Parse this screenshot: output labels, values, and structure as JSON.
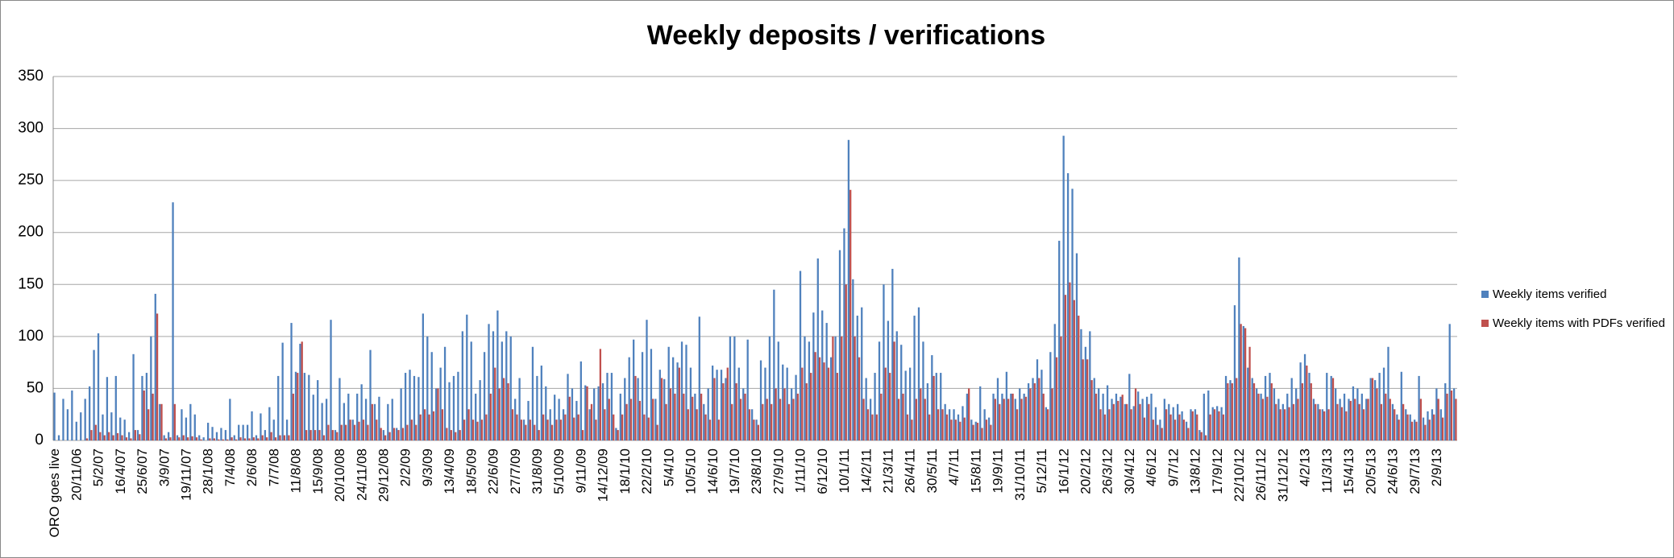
{
  "chart_data": {
    "type": "bar",
    "title": "Weekly deposits / verifications",
    "categories": [
      "ORO goes live",
      null,
      null,
      null,
      null,
      "20/11/06",
      null,
      null,
      null,
      null,
      "5/2/07",
      null,
      null,
      null,
      null,
      "16/4/07",
      null,
      null,
      null,
      null,
      "25/6/07",
      null,
      null,
      null,
      null,
      "3/9/07",
      null,
      null,
      null,
      null,
      "19/11/07",
      null,
      null,
      null,
      null,
      "28/1/08",
      null,
      null,
      null,
      null,
      "7/4/08",
      null,
      null,
      null,
      null,
      "2/6/08",
      null,
      null,
      null,
      null,
      "7/7/08",
      null,
      null,
      null,
      null,
      "11/8/08",
      null,
      null,
      null,
      null,
      "15/9/08",
      null,
      null,
      null,
      null,
      "20/10/08",
      null,
      null,
      null,
      null,
      "24/11/08",
      null,
      null,
      null,
      null,
      "29/12/08",
      null,
      null,
      null,
      null,
      "2/2/09",
      null,
      null,
      null,
      null,
      "9/3/09",
      null,
      null,
      null,
      null,
      "13/4/09",
      null,
      null,
      null,
      null,
      "18/5/09",
      null,
      null,
      null,
      null,
      "22/6/09",
      null,
      null,
      null,
      null,
      "27/7/09",
      null,
      null,
      null,
      null,
      "31/8/09",
      null,
      null,
      null,
      null,
      "5/10/09",
      null,
      null,
      null,
      null,
      "9/11/09",
      null,
      null,
      null,
      null,
      "14/12/09",
      null,
      null,
      null,
      null,
      "18/1/10",
      null,
      null,
      null,
      null,
      "22/2/10",
      null,
      null,
      null,
      null,
      "5/4/10",
      null,
      null,
      null,
      null,
      "10/5/10",
      null,
      null,
      null,
      null,
      "14/6/10",
      null,
      null,
      null,
      null,
      "19/7/10",
      null,
      null,
      null,
      null,
      "23/8/10",
      null,
      null,
      null,
      null,
      "27/9/10",
      null,
      null,
      null,
      null,
      "1/11/10",
      null,
      null,
      null,
      null,
      "6/12/10",
      null,
      null,
      null,
      null,
      "10/1/11",
      null,
      null,
      null,
      null,
      "14/2/11",
      null,
      null,
      null,
      null,
      "21/3/11",
      null,
      null,
      null,
      null,
      "26/4/11",
      null,
      null,
      null,
      null,
      "30/5/11",
      null,
      null,
      null,
      null,
      "4/7/11",
      null,
      null,
      null,
      null,
      "15/8/11",
      null,
      null,
      null,
      null,
      "19/9/11",
      null,
      null,
      null,
      null,
      "31/10/11",
      null,
      null,
      null,
      null,
      "5/12/11",
      null,
      null,
      null,
      null,
      "16/1/12",
      null,
      null,
      null,
      null,
      "20/2/12",
      null,
      null,
      null,
      null,
      "26/3/12",
      null,
      null,
      null,
      null,
      "30/4/12",
      null,
      null,
      null,
      null,
      "4/6/12",
      null,
      null,
      null,
      null,
      "9/7/12",
      null,
      null,
      null,
      null,
      "13/8/12",
      null,
      null,
      null,
      null,
      "17/9/12",
      null,
      null,
      null,
      null,
      "22/10/12",
      null,
      null,
      null,
      null,
      "26/11/12",
      null,
      null,
      null,
      null,
      "31/12/12",
      null,
      null,
      null,
      null,
      "4/2/13",
      null,
      null,
      null,
      null,
      "11/3/13",
      null,
      null,
      null,
      null,
      "15/4/13",
      null,
      null,
      null,
      null,
      "20/5/13",
      null,
      null,
      null,
      null,
      "24/6/13",
      null,
      null,
      null,
      null,
      "29/7/13",
      null,
      null,
      null,
      null,
      "2/9/13",
      null,
      null,
      null,
      null
    ],
    "series": [
      {
        "name": "Weekly items verified",
        "color": "#4f81bd",
        "values": [
          46,
          5,
          40,
          30,
          48,
          18,
          27,
          40,
          52,
          87,
          103,
          25,
          61,
          27,
          62,
          22,
          20,
          8,
          83,
          10,
          62,
          65,
          100,
          141,
          35,
          5,
          8,
          229,
          5,
          30,
          22,
          35,
          25,
          5,
          3,
          17,
          13,
          8,
          12,
          10,
          40,
          5,
          15,
          15,
          15,
          28,
          5,
          26,
          10,
          32,
          20,
          62,
          94,
          20,
          113,
          66,
          93,
          65,
          63,
          44,
          58,
          36,
          40,
          116,
          10,
          60,
          36,
          45,
          20,
          45,
          54,
          40,
          87,
          35,
          42,
          10,
          35,
          40,
          12,
          50,
          65,
          68,
          62,
          61,
          122,
          100,
          85,
          50,
          70,
          90,
          56,
          62,
          66,
          105,
          121,
          95,
          45,
          58,
          85,
          112,
          105,
          125,
          95,
          105,
          100,
          40,
          60,
          20,
          38,
          90,
          62,
          72,
          52,
          30,
          44,
          40,
          30,
          64,
          50,
          38,
          76,
          53,
          30,
          50,
          52,
          55,
          65,
          65,
          12,
          45,
          60,
          80,
          97,
          60,
          85,
          116,
          88,
          40,
          68,
          59,
          90,
          80,
          75,
          95,
          92,
          70,
          45,
          119,
          35,
          50,
          72,
          68,
          68,
          60,
          100,
          100,
          70,
          50,
          97,
          30,
          20,
          77,
          70,
          100,
          145,
          95,
          73,
          70,
          50,
          63,
          163,
          100,
          95,
          123,
          175,
          125,
          113,
          80,
          100,
          183,
          204,
          289,
          155,
          120,
          128,
          60,
          40,
          65,
          95,
          150,
          115,
          165,
          105,
          92,
          67,
          70,
          120,
          128,
          95,
          55,
          82,
          65,
          65,
          35,
          30,
          30,
          25,
          33,
          45,
          20,
          18,
          52,
          30,
          22,
          45,
          60,
          45,
          66,
          45,
          40,
          50,
          45,
          55,
          60,
          78,
          68,
          32,
          85,
          112,
          192,
          293,
          257,
          242,
          180,
          107,
          90,
          105,
          60,
          50,
          45,
          53,
          40,
          45,
          42,
          35,
          64,
          33,
          47,
          40,
          42,
          45,
          32,
          20,
          40,
          35,
          32,
          35,
          28,
          18,
          30,
          30,
          10,
          45,
          48,
          32,
          33,
          32,
          62,
          58,
          130,
          176,
          110,
          70,
          60,
          50,
          45,
          62,
          65,
          50,
          40,
          35,
          45,
          60,
          50,
          75,
          83,
          65,
          40,
          35,
          30,
          65,
          62,
          50,
          40,
          45,
          40,
          52,
          50,
          45,
          40,
          60,
          58,
          65,
          70,
          90,
          35,
          25,
          66,
          30,
          25,
          20,
          62,
          22,
          28,
          30,
          50,
          30,
          55,
          112,
          50
        ]
      },
      {
        "name": "Weekly items with PDFs verified",
        "color": "#c0504d",
        "values": [
          0,
          0,
          0,
          0,
          0,
          0,
          0,
          2,
          10,
          15,
          8,
          5,
          8,
          5,
          7,
          5,
          3,
          2,
          10,
          6,
          48,
          30,
          45,
          122,
          35,
          2,
          3,
          35,
          3,
          5,
          3,
          4,
          3,
          1,
          0,
          2,
          2,
          1,
          1,
          1,
          3,
          1,
          3,
          2,
          2,
          3,
          2,
          5,
          3,
          8,
          3,
          5,
          5,
          5,
          45,
          65,
          95,
          10,
          10,
          10,
          10,
          5,
          15,
          10,
          8,
          15,
          15,
          20,
          15,
          18,
          20,
          15,
          35,
          20,
          12,
          5,
          8,
          12,
          10,
          12,
          15,
          20,
          15,
          25,
          30,
          25,
          28,
          50,
          30,
          12,
          10,
          8,
          10,
          20,
          30,
          20,
          18,
          20,
          25,
          45,
          70,
          50,
          60,
          55,
          30,
          25,
          20,
          15,
          20,
          15,
          10,
          25,
          20,
          15,
          20,
          20,
          25,
          42,
          22,
          25,
          10,
          52,
          35,
          20,
          88,
          30,
          40,
          25,
          10,
          25,
          35,
          40,
          62,
          38,
          25,
          22,
          40,
          15,
          60,
          35,
          50,
          45,
          70,
          45,
          30,
          42,
          30,
          45,
          25,
          20,
          60,
          20,
          55,
          70,
          35,
          55,
          40,
          45,
          30,
          20,
          15,
          35,
          40,
          35,
          50,
          40,
          50,
          35,
          40,
          45,
          70,
          55,
          65,
          85,
          80,
          75,
          70,
          100,
          65,
          100,
          150,
          241,
          100,
          80,
          40,
          30,
          25,
          25,
          45,
          70,
          65,
          95,
          40,
          45,
          25,
          20,
          40,
          50,
          40,
          25,
          62,
          30,
          30,
          25,
          20,
          20,
          18,
          22,
          50,
          15,
          17,
          12,
          20,
          15,
          40,
          35,
          40,
          40,
          45,
          30,
          40,
          42,
          50,
          55,
          60,
          45,
          30,
          50,
          80,
          100,
          140,
          152,
          135,
          120,
          78,
          78,
          58,
          45,
          30,
          25,
          30,
          35,
          38,
          44,
          35,
          30,
          50,
          35,
          22,
          35,
          20,
          15,
          12,
          30,
          25,
          20,
          25,
          20,
          12,
          28,
          25,
          8,
          5,
          25,
          30,
          28,
          25,
          55,
          55,
          60,
          112,
          108,
          90,
          55,
          45,
          40,
          42,
          55,
          35,
          30,
          30,
          32,
          35,
          40,
          55,
          72,
          55,
          35,
          30,
          28,
          30,
          60,
          35,
          32,
          28,
          38,
          40,
          35,
          30,
          40,
          60,
          50,
          35,
          45,
          40,
          30,
          20,
          35,
          25,
          18,
          18,
          40,
          15,
          20,
          25,
          40,
          22,
          45,
          48,
          40
        ]
      }
    ],
    "ylim": [
      0,
      350
    ],
    "yticks": [
      0,
      50,
      100,
      150,
      200,
      250,
      300,
      350
    ],
    "grid": true,
    "legend": "right"
  }
}
